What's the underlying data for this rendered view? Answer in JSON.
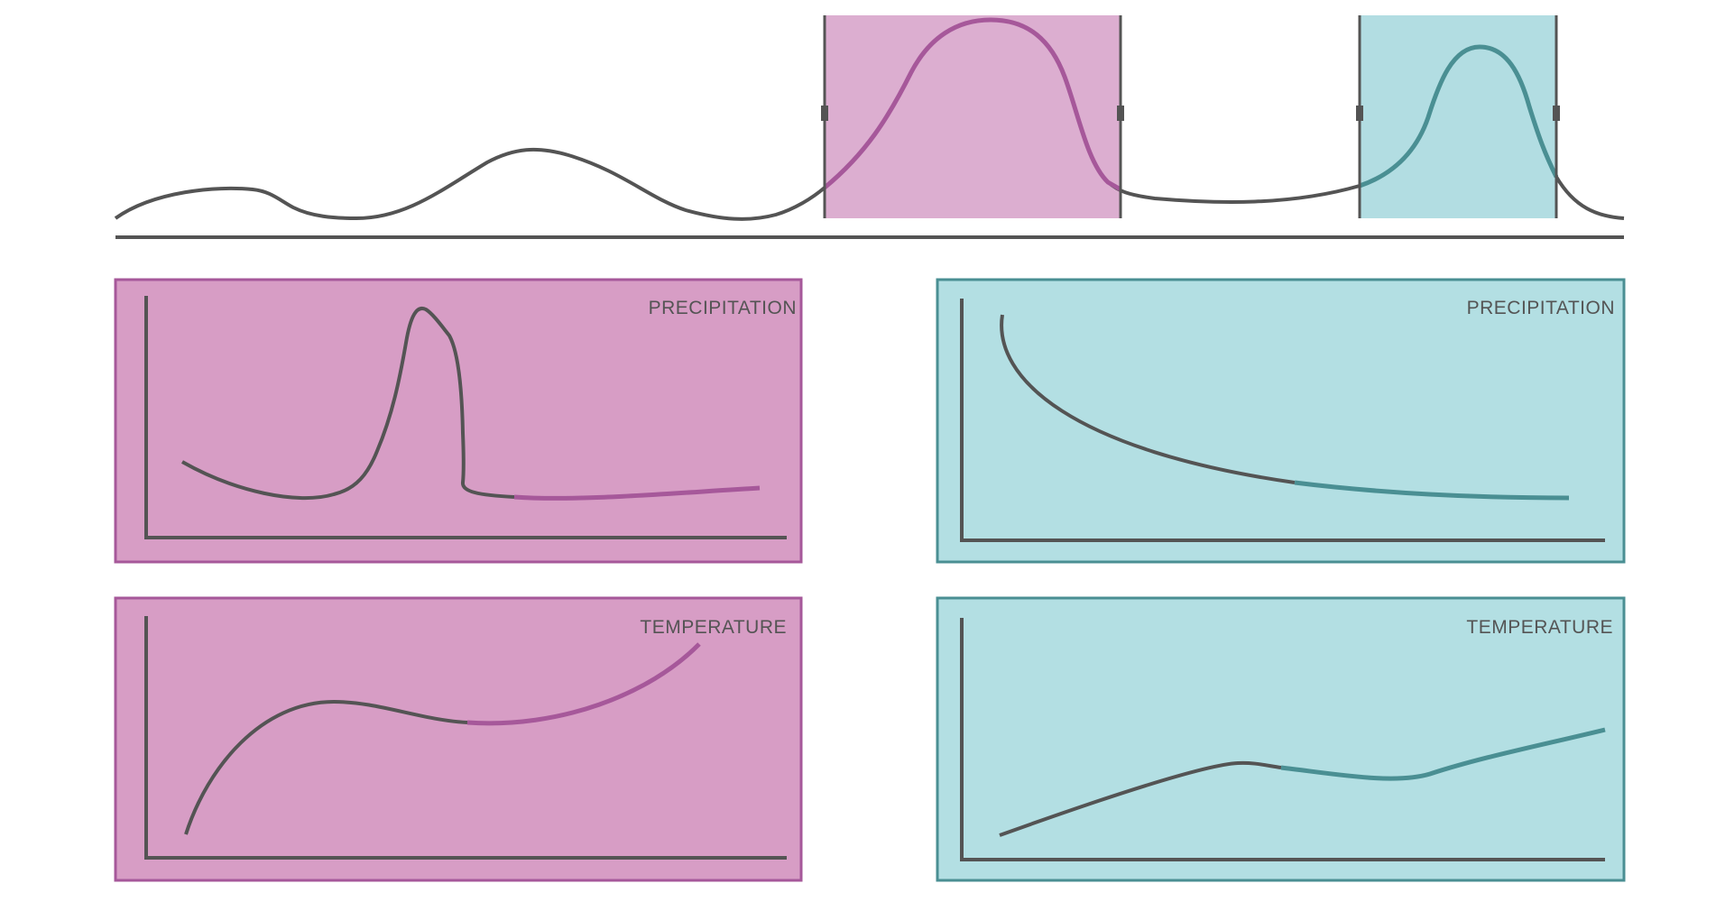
{
  "colors": {
    "curve": "#545454",
    "magenta_fill": "#dcaed0",
    "magenta_panel_fill": "#d79dc5",
    "magenta_stroke": "#a6589a",
    "teal_fill": "#b2dde2",
    "teal_panel_fill": "#b3dfe3",
    "teal_stroke": "#4a8f93",
    "background": "#ffffff"
  },
  "panels": {
    "magenta_precipitation": {
      "label": "PRECIPITATION"
    },
    "magenta_temperature": {
      "label": "TEMPERATURE"
    },
    "teal_precipitation": {
      "label": "PRECIPITATION"
    },
    "teal_temperature": {
      "label": "TEMPERATURE"
    }
  }
}
